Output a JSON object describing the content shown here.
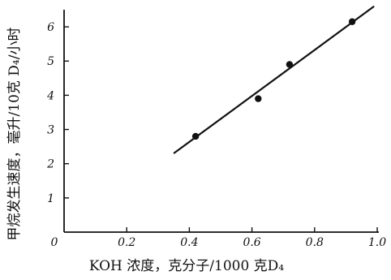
{
  "chart_data": {
    "type": "scatter",
    "title": "",
    "xlabel": "KOH 浓度，克分子/1000 克D₄",
    "ylabel": "甲烷发生速度，毫升/10克 D₄/小时",
    "xlim": [
      0,
      1.0
    ],
    "ylim": [
      0,
      6.5
    ],
    "x_ticks": [
      {
        "value": 0,
        "label": "0"
      },
      {
        "value": 0.2,
        "label": "0.2"
      },
      {
        "value": 0.4,
        "label": "0.4"
      },
      {
        "value": 0.6,
        "label": "0.6"
      },
      {
        "value": 0.8,
        "label": "0.8"
      },
      {
        "value": 1.0,
        "label": "1.0"
      }
    ],
    "y_ticks": [
      {
        "value": 1,
        "label": "1"
      },
      {
        "value": 2,
        "label": "2"
      },
      {
        "value": 3,
        "label": "3"
      },
      {
        "value": 4,
        "label": "4"
      },
      {
        "value": 5,
        "label": "5"
      },
      {
        "value": 6,
        "label": "6"
      }
    ],
    "grid": false,
    "legend": "none",
    "series": [
      {
        "points": [
          {
            "x": 0.42,
            "y": 2.8
          },
          {
            "x": 0.62,
            "y": 3.9
          },
          {
            "x": 0.72,
            "y": 4.9
          },
          {
            "x": 0.92,
            "y": 6.15
          }
        ]
      }
    ],
    "fit_line": {
      "x": [
        0.35,
        0.99
      ],
      "y": [
        2.3,
        6.6
      ]
    },
    "colors": {
      "ink": "#111111",
      "background": "#ffffff"
    }
  }
}
